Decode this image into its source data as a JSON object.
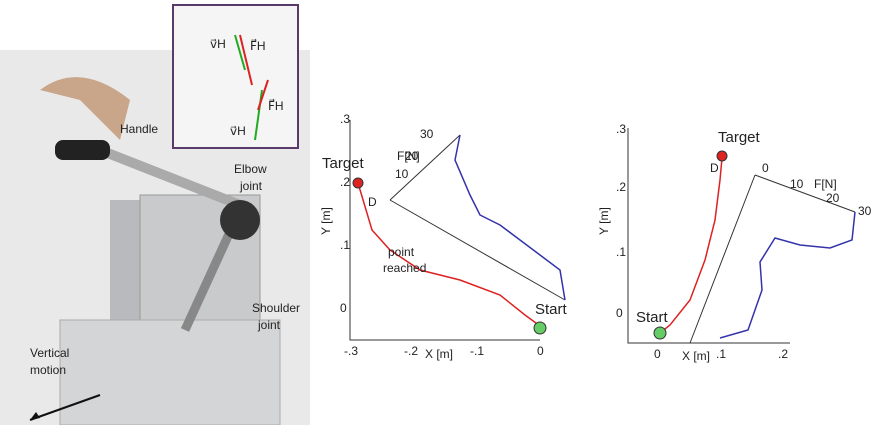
{
  "photo": {
    "handle": "Handle",
    "elbow": [
      "Elbow",
      "joint"
    ],
    "shoulder": [
      "Shoulder",
      "joint"
    ],
    "vertical": [
      "Vertical",
      "motion"
    ]
  },
  "inset": {
    "v_top": "v⃗H",
    "f_top": "F⃗H",
    "f_bottom": "F⃗H",
    "v_bottom": "v⃗H"
  },
  "left_plot": {
    "y_label": "Y [m]",
    "x_label": "X [m]",
    "force_label": "F[N]",
    "yticks": [
      ".3",
      ".2",
      ".1",
      "0"
    ],
    "xticks": [
      "-.3",
      "-.2",
      "-.1",
      "0"
    ],
    "force_ticks": [
      "10",
      "20",
      "30"
    ],
    "target": "Target",
    "d": "D",
    "point_reached": [
      "point",
      "reached"
    ],
    "start": "Start"
  },
  "right_plot": {
    "y_label": "Y [m]",
    "x_label": "X [m]",
    "force_label": "F[N]",
    "yticks": [
      ".3",
      ".2",
      ".1",
      "0"
    ],
    "xticks": [
      "0",
      ".1",
      ".2"
    ],
    "force_ticks": [
      "0",
      "10",
      "20",
      "30"
    ],
    "target": "Target",
    "d": "D",
    "start": "Start"
  }
}
